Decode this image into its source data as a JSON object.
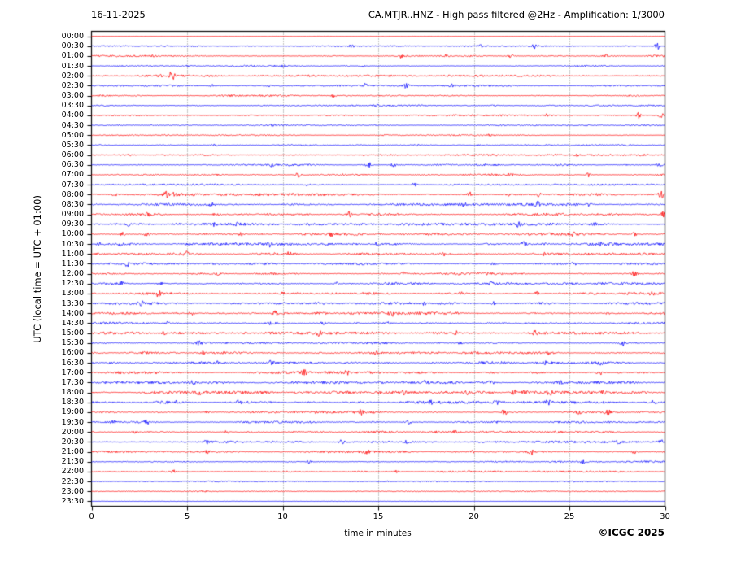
{
  "header": {
    "date": "16-11-2025",
    "title": "CA.MTJR..HNZ - High pass filtered @2Hz - Amplification: 1/3000"
  },
  "footer": {
    "copyright": "©ICGC 2025"
  },
  "chart_data": {
    "type": "line",
    "subtype": "helicorder-seismogram",
    "station": "CA.MTJR..HNZ",
    "filter": "High pass filtered @2Hz",
    "amplification": "1/3000",
    "date": "16-11-2025",
    "xlabel": "time in minutes",
    "ylabel": "UTC (local time = UTC + 01:00)",
    "xlim": [
      0,
      30
    ],
    "x_ticks": [
      0,
      5,
      10,
      15,
      20,
      25,
      30
    ],
    "grid": "dotted vertical lines at 5-minute intervals",
    "legend_position": "none",
    "colors": {
      "red": "#ff0000",
      "blue": "#0000ff",
      "grid": "#666666",
      "frame": "#000000"
    },
    "minutes_per_row": 30,
    "rows": [
      {
        "label": "00:00",
        "color": "red",
        "amp": 0.12,
        "spikes": []
      },
      {
        "label": "00:30",
        "color": "blue",
        "amp": 0.45,
        "spikes": [
          [
            13.6,
            2
          ],
          [
            20.4,
            2
          ],
          [
            23.2,
            3
          ],
          [
            29.6,
            4
          ]
        ]
      },
      {
        "label": "01:00",
        "color": "red",
        "amp": 0.7,
        "spikes": [
          [
            16.2,
            2
          ],
          [
            18.6,
            2
          ],
          [
            21.9,
            4
          ],
          [
            26.9,
            2
          ]
        ]
      },
      {
        "label": "01:30",
        "color": "blue",
        "amp": 0.55,
        "spikes": [
          [
            5.0,
            1.5
          ],
          [
            10.0,
            1.5
          ],
          [
            14.2,
            2
          ]
        ]
      },
      {
        "label": "02:00",
        "color": "red",
        "amp": 0.7,
        "spikes": [
          [
            3.6,
            2.5
          ],
          [
            4.2,
            6
          ]
        ]
      },
      {
        "label": "02:30",
        "color": "blue",
        "amp": 0.6,
        "spikes": [
          [
            6.3,
            1.5
          ],
          [
            9.3,
            1.5
          ],
          [
            14.3,
            2
          ],
          [
            16.5,
            4
          ],
          [
            18.8,
            2
          ]
        ]
      },
      {
        "label": "03:00",
        "color": "red",
        "amp": 0.6,
        "spikes": [
          [
            12.7,
            2.5
          ]
        ]
      },
      {
        "label": "03:30",
        "color": "blue",
        "amp": 0.5,
        "spikes": [
          [
            14.9,
            1.5
          ],
          [
            21.0,
            1.5
          ]
        ]
      },
      {
        "label": "04:00",
        "color": "red",
        "amp": 0.6,
        "spikes": [
          [
            23.8,
            1.5
          ],
          [
            28.6,
            3.5
          ],
          [
            29.8,
            3
          ]
        ]
      },
      {
        "label": "04:30",
        "color": "blue",
        "amp": 0.45,
        "spikes": [
          [
            9.5,
            1.2
          ]
        ]
      },
      {
        "label": "05:00",
        "color": "red",
        "amp": 0.45,
        "spikes": [
          [
            20.8,
            1.2
          ]
        ]
      },
      {
        "label": "05:30",
        "color": "blue",
        "amp": 0.5,
        "spikes": [
          [
            6.5,
            1.2
          ],
          [
            17.0,
            1.5
          ]
        ]
      },
      {
        "label": "06:00",
        "color": "red",
        "amp": 0.65,
        "spikes": [
          [
            2.0,
            1.5
          ],
          [
            25.4,
            1.5
          ]
        ]
      },
      {
        "label": "06:30",
        "color": "blue",
        "amp": 0.7,
        "spikes": [
          [
            9.4,
            2
          ],
          [
            14.5,
            3.5
          ],
          [
            15.8,
            2.5
          ],
          [
            29.7,
            2
          ]
        ]
      },
      {
        "label": "07:00",
        "color": "red",
        "amp": 0.7,
        "spikes": [
          [
            10.8,
            3.5
          ],
          [
            21.9,
            2
          ],
          [
            26.0,
            2.5
          ]
        ]
      },
      {
        "label": "07:30",
        "color": "blue",
        "amp": 0.6,
        "spikes": [
          [
            11.3,
            1.5
          ],
          [
            16.9,
            2
          ]
        ]
      },
      {
        "label": "08:00",
        "color": "red",
        "amp": 0.9,
        "spikes": [
          [
            1.2,
            2
          ],
          [
            3.9,
            3
          ],
          [
            4.4,
            3.5
          ],
          [
            19.8,
            3.5
          ],
          [
            21.8,
            2
          ],
          [
            23.4,
            2.5
          ],
          [
            29.8,
            4
          ]
        ]
      },
      {
        "label": "08:30",
        "color": "blue",
        "amp": 0.85,
        "spikes": [
          [
            6.3,
            2.5
          ],
          [
            19.5,
            2
          ],
          [
            23.3,
            3.5
          ],
          [
            26.0,
            2
          ]
        ]
      },
      {
        "label": "09:00",
        "color": "red",
        "amp": 0.85,
        "spikes": [
          [
            2.9,
            2.5
          ],
          [
            6.5,
            2.5
          ],
          [
            13.5,
            3.5
          ],
          [
            29.9,
            3
          ]
        ]
      },
      {
        "label": "09:30",
        "color": "blue",
        "amp": 0.9,
        "spikes": [
          [
            1.9,
            2.5
          ],
          [
            6.4,
            2.5
          ],
          [
            7.6,
            2
          ],
          [
            22.3,
            2.5
          ],
          [
            26.3,
            2
          ]
        ]
      },
      {
        "label": "10:00",
        "color": "red",
        "amp": 0.9,
        "spikes": [
          [
            1.6,
            2.5
          ],
          [
            2.9,
            2.5
          ],
          [
            7.8,
            2.5
          ],
          [
            12.5,
            2.5
          ],
          [
            25.2,
            2
          ],
          [
            28.4,
            2.5
          ]
        ]
      },
      {
        "label": "10:30",
        "color": "blue",
        "amp": 0.9,
        "spikes": [
          [
            0.4,
            2.5
          ],
          [
            1.5,
            2
          ],
          [
            9.3,
            2.5
          ],
          [
            14.9,
            2
          ],
          [
            22.6,
            2.5
          ],
          [
            26.6,
            2
          ]
        ]
      },
      {
        "label": "11:00",
        "color": "red",
        "amp": 0.85,
        "spikes": [
          [
            4.9,
            3
          ],
          [
            10.3,
            2
          ],
          [
            18.5,
            2
          ],
          [
            23.7,
            2
          ]
        ]
      },
      {
        "label": "11:30",
        "color": "blue",
        "amp": 0.85,
        "spikes": [
          [
            1.9,
            2.5
          ],
          [
            21.0,
            2
          ],
          [
            25.2,
            2.5
          ]
        ]
      },
      {
        "label": "12:00",
        "color": "red",
        "amp": 0.85,
        "spikes": [
          [
            6.6,
            2
          ],
          [
            16.3,
            2
          ],
          [
            28.4,
            3.5
          ]
        ]
      },
      {
        "label": "12:30",
        "color": "blue",
        "amp": 0.85,
        "spikes": [
          [
            1.6,
            2
          ],
          [
            3.6,
            2
          ],
          [
            12.8,
            2
          ],
          [
            20.9,
            2.5
          ]
        ]
      },
      {
        "label": "13:00",
        "color": "red",
        "amp": 0.85,
        "spikes": [
          [
            3.5,
            3
          ],
          [
            10.0,
            2
          ],
          [
            19.3,
            2.5
          ],
          [
            23.3,
            2.5
          ],
          [
            29.3,
            2.5
          ]
        ]
      },
      {
        "label": "13:30",
        "color": "blue",
        "amp": 0.9,
        "spikes": [
          [
            2.6,
            3
          ],
          [
            17.4,
            2
          ],
          [
            21.0,
            2.5
          ]
        ]
      },
      {
        "label": "14:00",
        "color": "red",
        "amp": 0.95,
        "spikes": [
          [
            5.2,
            2.5
          ],
          [
            9.6,
            3
          ],
          [
            15.7,
            3.5
          ],
          [
            27.0,
            2
          ]
        ]
      },
      {
        "label": "14:30",
        "color": "blue",
        "amp": 0.9,
        "spikes": [
          [
            4.0,
            2
          ],
          [
            9.4,
            2.5
          ],
          [
            12.1,
            2.5
          ],
          [
            15.5,
            2
          ]
        ]
      },
      {
        "label": "15:00",
        "color": "red",
        "amp": 0.9,
        "spikes": [
          [
            3.8,
            2
          ],
          [
            11.9,
            3.5
          ],
          [
            19.1,
            2
          ],
          [
            23.2,
            2.5
          ]
        ]
      },
      {
        "label": "15:30",
        "color": "blue",
        "amp": 0.85,
        "spikes": [
          [
            5.6,
            2
          ],
          [
            19.3,
            2
          ],
          [
            27.8,
            3.5
          ]
        ]
      },
      {
        "label": "16:00",
        "color": "red",
        "amp": 0.8,
        "spikes": [
          [
            5.8,
            2
          ],
          [
            14.9,
            2
          ],
          [
            23.9,
            2
          ]
        ]
      },
      {
        "label": "16:30",
        "color": "blue",
        "amp": 0.85,
        "spikes": [
          [
            6.5,
            2
          ],
          [
            9.4,
            2.5
          ],
          [
            23.8,
            3
          ],
          [
            26.6,
            2
          ]
        ]
      },
      {
        "label": "17:00",
        "color": "red",
        "amp": 0.9,
        "spikes": [
          [
            11.1,
            3.5
          ],
          [
            13.4,
            2.5
          ],
          [
            26.6,
            3
          ]
        ]
      },
      {
        "label": "17:30",
        "color": "blue",
        "amp": 0.9,
        "spikes": [
          [
            5.3,
            2.5
          ],
          [
            17.5,
            2.5
          ],
          [
            20.9,
            3
          ],
          [
            24.5,
            2
          ]
        ]
      },
      {
        "label": "18:00",
        "color": "red",
        "amp": 1.0,
        "spikes": [
          [
            5.6,
            2.5
          ],
          [
            16.3,
            2.5
          ],
          [
            19.6,
            2.5
          ],
          [
            22.1,
            3
          ],
          [
            22.7,
            3.5
          ],
          [
            24.0,
            3
          ],
          [
            26.8,
            3
          ]
        ]
      },
      {
        "label": "18:30",
        "color": "blue",
        "amp": 0.95,
        "spikes": [
          [
            4.4,
            2.5
          ],
          [
            7.7,
            3.5
          ],
          [
            17.8,
            3
          ],
          [
            21.2,
            2.5
          ],
          [
            23.9,
            3
          ],
          [
            29.4,
            3.5
          ]
        ]
      },
      {
        "label": "19:00",
        "color": "red",
        "amp": 0.9,
        "spikes": [
          [
            6.1,
            2
          ],
          [
            14.1,
            2.5
          ],
          [
            21.6,
            4
          ],
          [
            25.5,
            2.5
          ],
          [
            27.0,
            3.5
          ]
        ]
      },
      {
        "label": "19:30",
        "color": "blue",
        "amp": 0.75,
        "spikes": [
          [
            1.1,
            2
          ],
          [
            2.9,
            3
          ],
          [
            16.6,
            2
          ]
        ]
      },
      {
        "label": "20:00",
        "color": "red",
        "amp": 0.75,
        "spikes": [
          [
            2.3,
            2
          ],
          [
            7.1,
            2.5
          ],
          [
            19.0,
            2
          ]
        ]
      },
      {
        "label": "20:30",
        "color": "blue",
        "amp": 0.75,
        "spikes": [
          [
            6.0,
            2
          ],
          [
            13.1,
            2.5
          ],
          [
            16.5,
            2
          ],
          [
            27.6,
            2
          ],
          [
            29.8,
            2.5
          ]
        ]
      },
      {
        "label": "21:00",
        "color": "red",
        "amp": 0.75,
        "spikes": [
          [
            6.1,
            2.5
          ],
          [
            14.4,
            2.5
          ],
          [
            19.9,
            2
          ],
          [
            23.0,
            3.5
          ],
          [
            28.4,
            2.5
          ]
        ]
      },
      {
        "label": "21:30",
        "color": "blue",
        "amp": 0.65,
        "spikes": [
          [
            11.4,
            2.5
          ],
          [
            25.7,
            2.5
          ]
        ]
      },
      {
        "label": "22:00",
        "color": "red",
        "amp": 0.6,
        "spikes": [
          [
            4.3,
            2
          ],
          [
            15.9,
            1.5
          ]
        ]
      },
      {
        "label": "22:30",
        "color": "blue",
        "amp": 0.5,
        "spikes": [
          [
            15.5,
            1.2
          ]
        ]
      },
      {
        "label": "23:00",
        "color": "red",
        "amp": 0.35,
        "spikes": [
          [
            5.9,
            1.8
          ],
          [
            14.0,
            1.2
          ]
        ]
      },
      {
        "label": "23:30",
        "color": "blue",
        "amp": 0.12,
        "spikes": []
      }
    ]
  }
}
